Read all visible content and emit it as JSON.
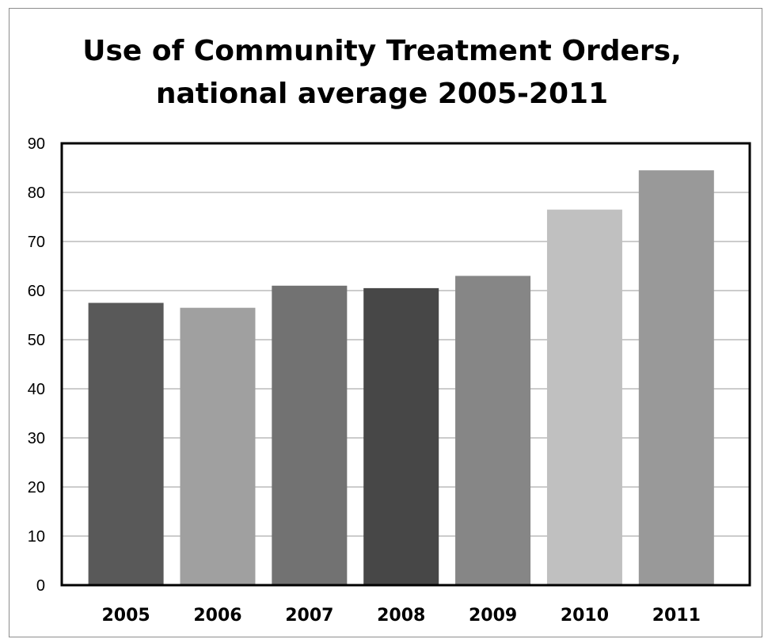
{
  "chart_data": {
    "type": "bar",
    "title_line1": "Use of Community Treatment Orders,",
    "title_line2": "national average 2005-2011",
    "xlabel": "",
    "ylabel": "",
    "categories": [
      "2005",
      "2006",
      "2007",
      "2008",
      "2009",
      "2010",
      "2011"
    ],
    "values": [
      57.5,
      56.5,
      61,
      60.5,
      63,
      76.5,
      84.5
    ],
    "colors": [
      "#595959",
      "#a0a0a0",
      "#727272",
      "#474747",
      "#868686",
      "#c0c0c0",
      "#999999"
    ],
    "ylim": [
      0,
      90
    ],
    "yticks": [
      "0",
      "10",
      "20",
      "30",
      "40",
      "50",
      "60",
      "70",
      "80",
      "90"
    ],
    "grid": true,
    "legend": "none"
  }
}
